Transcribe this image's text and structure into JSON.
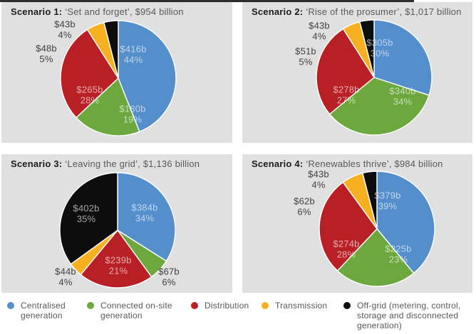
{
  "figure": {
    "legend": {
      "items": [
        {
          "label": "Centralised generation",
          "color": "#548FCC"
        },
        {
          "label": "Connected on-site generation",
          "color": "#6CA83E"
        },
        {
          "label": "Distribution",
          "color": "#B92025"
        },
        {
          "label": "Transmission",
          "color": "#F7B020"
        },
        {
          "label": "Off-grid (metering, control, storage and disconnected generation)",
          "color": "#0D0D0D"
        }
      ]
    }
  },
  "chart_data": [
    {
      "type": "pie",
      "title_bold": "Scenario 1:",
      "title_rest": "‘Set and forget’, $954 billion",
      "total_label": "$954 billion",
      "start_angle_deg": -90,
      "direction": "clockwise",
      "slices": [
        {
          "category": "Centralised generation",
          "value_billion": 416,
          "value_label": "$416b",
          "pct": 44,
          "pct_label": "44%",
          "color": "#548FCC",
          "label_placement": "inside"
        },
        {
          "category": "Connected on-site generation",
          "value_billion": 180,
          "value_label": "$180b",
          "pct": 19,
          "pct_label": "19%",
          "color": "#6CA83E",
          "label_placement": "inside"
        },
        {
          "category": "Distribution",
          "value_billion": 265,
          "value_label": "$265b",
          "pct": 28,
          "pct_label": "28%",
          "color": "#B92025",
          "label_placement": "inside"
        },
        {
          "category": "Transmission",
          "value_billion": 48,
          "value_label": "$48b",
          "pct": 5,
          "pct_label": "5%",
          "color": "#F7B020",
          "label_placement": "outside"
        },
        {
          "category": "Off-grid (metering, control, storage and disconnected generation)",
          "value_billion": 43,
          "value_label": "$43b",
          "pct": 4,
          "pct_label": "4%",
          "color": "#0D0D0D",
          "label_placement": "outside"
        }
      ]
    },
    {
      "type": "pie",
      "title_bold": "Scenario 2:",
      "title_rest": "‘Rise of the prosumer’, $1,017 billion",
      "total_label": "$1,017 billion",
      "start_angle_deg": -90,
      "direction": "clockwise",
      "slices": [
        {
          "category": "Centralised generation",
          "value_billion": 305,
          "value_label": "$305b",
          "pct": 30,
          "pct_label": "30%",
          "color": "#548FCC",
          "label_placement": "inside"
        },
        {
          "category": "Connected on-site generation",
          "value_billion": 340,
          "value_label": "$340b",
          "pct": 34,
          "pct_label": "34%",
          "color": "#6CA83E",
          "label_placement": "inside"
        },
        {
          "category": "Distribution",
          "value_billion": 278,
          "value_label": "$278b",
          "pct": 27,
          "pct_label": "27%",
          "color": "#B92025",
          "label_placement": "inside"
        },
        {
          "category": "Transmission",
          "value_billion": 51,
          "value_label": "$51b",
          "pct": 5,
          "pct_label": "5%",
          "color": "#F7B020",
          "label_placement": "outside"
        },
        {
          "category": "Off-grid (metering, control, storage and disconnected generation)",
          "value_billion": 43,
          "value_label": "$43b",
          "pct": 4,
          "pct_label": "4%",
          "color": "#0D0D0D",
          "label_placement": "outside"
        }
      ]
    },
    {
      "type": "pie",
      "title_bold": "Scenario 3:",
      "title_rest": "‘Leaving the grid’, $1,136 billion",
      "total_label": "$1,136 billion",
      "start_angle_deg": -90,
      "direction": "clockwise",
      "slices": [
        {
          "category": "Centralised generation",
          "value_billion": 384,
          "value_label": "$384b",
          "pct": 34,
          "pct_label": "34%",
          "color": "#548FCC",
          "label_placement": "inside"
        },
        {
          "category": "Connected on-site generation",
          "value_billion": 67,
          "value_label": "$67b",
          "pct": 6,
          "pct_label": "6%",
          "color": "#6CA83E",
          "label_placement": "outside"
        },
        {
          "category": "Distribution",
          "value_billion": 239,
          "value_label": "$239b",
          "pct": 21,
          "pct_label": "21%",
          "color": "#B92025",
          "label_placement": "inside"
        },
        {
          "category": "Transmission",
          "value_billion": 44,
          "value_label": "$44b",
          "pct": 4,
          "pct_label": "4%",
          "color": "#F7B020",
          "label_placement": "outside"
        },
        {
          "category": "Off-grid (metering, control, storage and disconnected generation)",
          "value_billion": 402,
          "value_label": "$402b",
          "pct": 35,
          "pct_label": "35%",
          "color": "#0D0D0D",
          "label_placement": "inside"
        }
      ]
    },
    {
      "type": "pie",
      "title_bold": "Scenario 4:",
      "title_rest": "‘Renewables thrive’, $984 billion",
      "total_label": "$984 billion",
      "start_angle_deg": -90,
      "direction": "clockwise",
      "slices": [
        {
          "category": "Centralised generation",
          "value_billion": 379,
          "value_label": "$379b",
          "pct": 39,
          "pct_label": "39%",
          "color": "#548FCC",
          "label_placement": "inside"
        },
        {
          "category": "Connected on-site generation",
          "value_billion": 225,
          "value_label": "$225b",
          "pct": 23,
          "pct_label": "23%",
          "color": "#6CA83E",
          "label_placement": "inside"
        },
        {
          "category": "Distribution",
          "value_billion": 274,
          "value_label": "$274b",
          "pct": 28,
          "pct_label": "28%",
          "color": "#B92025",
          "label_placement": "inside"
        },
        {
          "category": "Transmission",
          "value_billion": 62,
          "value_label": "$62b",
          "pct": 6,
          "pct_label": "6%",
          "color": "#F7B020",
          "label_placement": "outside"
        },
        {
          "category": "Off-grid (metering, control, storage and disconnected generation)",
          "value_billion": 43,
          "value_label": "$43b",
          "pct": 4,
          "pct_label": "4%",
          "color": "#0D0D0D",
          "label_placement": "outside"
        }
      ]
    }
  ]
}
